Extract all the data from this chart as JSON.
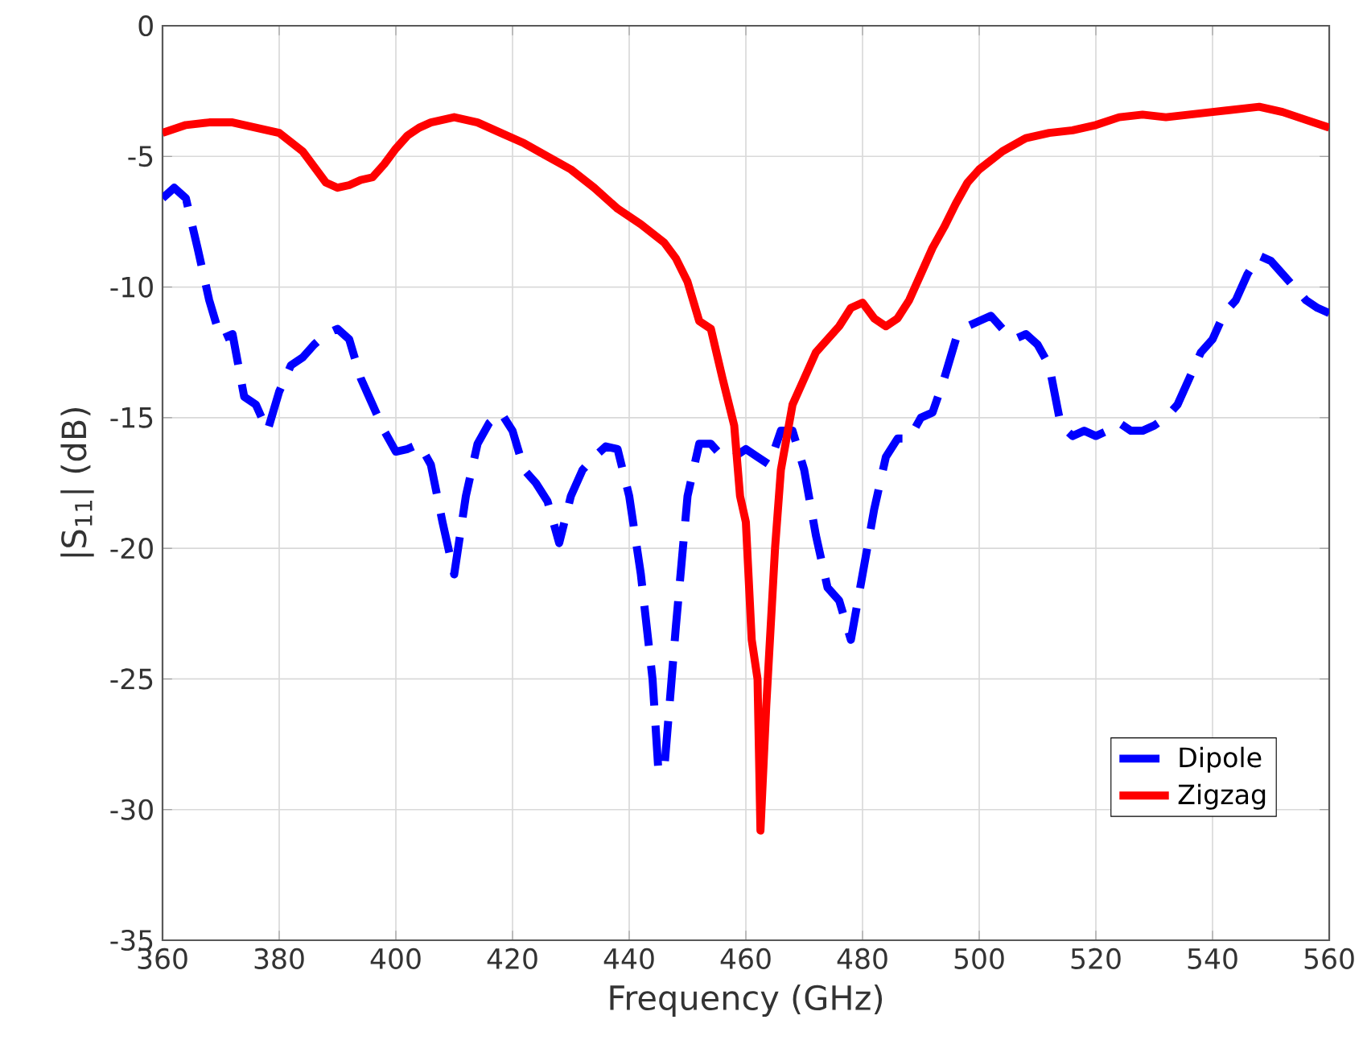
{
  "chart_data": {
    "type": "line",
    "xlabel": "Frequency (GHz)",
    "ylabel": "|S$_{11}$| (dB)",
    "xlim": [
      360,
      560
    ],
    "ylim": [
      -35,
      0
    ],
    "xticks": [
      360,
      380,
      400,
      420,
      440,
      460,
      480,
      500,
      520,
      540,
      560
    ],
    "yticks": [
      -35,
      -30,
      -25,
      -20,
      -15,
      -10,
      -5,
      0
    ],
    "grid": true,
    "legend": "bottom right",
    "series": [
      {
        "name": "Dipole",
        "color": "#0000ff",
        "line_style": "dashed",
        "x": [
          360,
          362,
          364,
          366,
          368,
          370,
          372,
          374,
          376,
          378,
          380,
          382,
          384,
          386,
          388,
          390,
          392,
          394,
          396,
          398,
          400,
          402,
          404,
          406,
          408,
          410,
          412,
          414,
          416,
          418,
          420,
          422,
          424,
          426,
          428,
          430,
          432,
          434,
          436,
          438,
          440,
          442,
          444,
          445,
          446,
          448,
          450,
          452,
          454,
          456,
          458,
          460,
          462,
          464,
          466,
          468,
          470,
          472,
          474,
          476,
          478,
          480,
          482,
          484,
          486,
          488,
          490,
          492,
          494,
          496,
          498,
          500,
          502,
          504,
          506,
          508,
          510,
          512,
          514,
          516,
          518,
          520,
          522,
          524,
          526,
          528,
          530,
          532,
          534,
          536,
          538,
          540,
          542,
          544,
          546,
          548,
          550,
          552,
          554,
          556,
          558,
          560
        ],
        "values": [
          -6.6,
          -6.2,
          -6.6,
          -8.5,
          -10.5,
          -12,
          -11.8,
          -14.2,
          -14.5,
          -15.5,
          -14,
          -13,
          -12.7,
          -12.2,
          -11.8,
          -11.6,
          -12,
          -13.5,
          -14.5,
          -15.5,
          -16.3,
          -16.2,
          -16,
          -16.8,
          -19,
          -21,
          -18,
          -16,
          -15.2,
          -14.8,
          -15.5,
          -17,
          -17.5,
          -18.2,
          -19.8,
          -18,
          -17,
          -16.5,
          -16.1,
          -16.2,
          -18,
          -21,
          -25,
          -28.5,
          -28.5,
          -23,
          -18,
          -16,
          -16,
          -16.5,
          -16.5,
          -16.2,
          -16.5,
          -16.8,
          -15.5,
          -15.5,
          -17,
          -19.5,
          -21.5,
          -22,
          -23.5,
          -21,
          -18.5,
          -16.5,
          -15.8,
          -15.8,
          -15,
          -14.8,
          -13.5,
          -12,
          -11.5,
          -11.3,
          -11.1,
          -11.6,
          -12,
          -11.8,
          -12.2,
          -13,
          -15.3,
          -15.7,
          -15.5,
          -15.7,
          -15.5,
          -15.2,
          -15.5,
          -15.5,
          -15.3,
          -15,
          -14.5,
          -13.5,
          -12.5,
          -12,
          -11,
          -10.5,
          -9.5,
          -8.8,
          -9,
          -9.5,
          -10,
          -10.5,
          -10.8,
          -11
        ]
      },
      {
        "name": "Zigzag",
        "color": "#ff0000",
        "line_style": "solid",
        "x": [
          360,
          364,
          368,
          372,
          376,
          380,
          384,
          386,
          388,
          390,
          392,
          394,
          396,
          398,
          400,
          402,
          404,
          406,
          410,
          414,
          418,
          422,
          426,
          430,
          434,
          438,
          442,
          446,
          448,
          450,
          452,
          454,
          456,
          458,
          459,
          460,
          461,
          462,
          462.5,
          463.5,
          465,
          466,
          468,
          470,
          472,
          474,
          476,
          478,
          480,
          482,
          484,
          486,
          488,
          490,
          492,
          494,
          496,
          498,
          500,
          504,
          508,
          512,
          516,
          520,
          524,
          528,
          532,
          536,
          540,
          544,
          548,
          552,
          556,
          560
        ],
        "values": [
          -4.1,
          -3.8,
          -3.7,
          -3.7,
          -3.9,
          -4.1,
          -4.8,
          -5.4,
          -6,
          -6.2,
          -6.1,
          -5.9,
          -5.8,
          -5.3,
          -4.7,
          -4.2,
          -3.9,
          -3.7,
          -3.5,
          -3.7,
          -4.1,
          -4.5,
          -5,
          -5.5,
          -6.2,
          -7,
          -7.6,
          -8.3,
          -8.9,
          -9.8,
          -11.3,
          -11.6,
          -13.5,
          -15.3,
          -18,
          -19,
          -23.5,
          -25,
          -30.8,
          -26,
          -20,
          -17,
          -14.5,
          -13.5,
          -12.5,
          -12,
          -11.5,
          -10.8,
          -10.6,
          -11.2,
          -11.5,
          -11.2,
          -10.5,
          -9.5,
          -8.5,
          -7.7,
          -6.8,
          -6,
          -5.5,
          -4.8,
          -4.3,
          -4.1,
          -4,
          -3.8,
          -3.5,
          -3.4,
          -3.5,
          -3.4,
          -3.3,
          -3.2,
          -3.1,
          -3.3,
          -3.6,
          -3.9
        ]
      }
    ]
  }
}
